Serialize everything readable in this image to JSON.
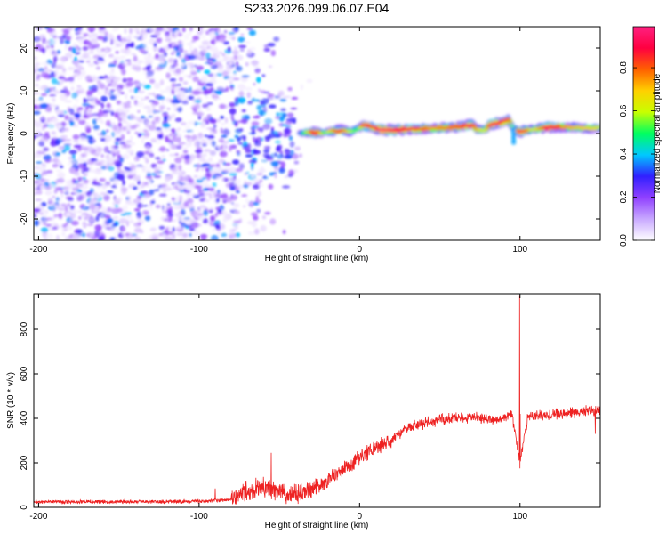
{
  "figure": {
    "title": "S233.2026.099.06.07.E04"
  },
  "chart_data": [
    {
      "type": "heatmap",
      "name": "spectrogram",
      "xlabel": "Height of straight line (km)",
      "ylabel": "Frequency (Hz)",
      "xlim": [
        -203,
        150
      ],
      "ylim": [
        -25,
        25
      ],
      "xticks": [
        -200,
        -100,
        0,
        100
      ],
      "yticks": [
        -20,
        -10,
        0,
        10,
        20
      ],
      "noise_region": {
        "x_start": -203,
        "x_end": -30,
        "fade_start": -90,
        "dense_end": -50
      },
      "signal_ridge": [
        {
          "x": -37,
          "y": 0.0,
          "a": 0.35
        },
        {
          "x": -33,
          "y": 0.3,
          "a": 0.6
        },
        {
          "x": -28,
          "y": 0.2,
          "a": 0.95
        },
        {
          "x": -22,
          "y": 0.1,
          "a": 0.5
        },
        {
          "x": -18,
          "y": 0.5,
          "a": 0.7
        },
        {
          "x": -12,
          "y": 0.8,
          "a": 0.9
        },
        {
          "x": -6,
          "y": 0.4,
          "a": 0.6
        },
        {
          "x": -1,
          "y": 1.2,
          "a": 0.5
        },
        {
          "x": 3,
          "y": 1.8,
          "a": 0.95
        },
        {
          "x": 8,
          "y": 1.5,
          "a": 0.8
        },
        {
          "x": 13,
          "y": 0.8,
          "a": 1.0
        },
        {
          "x": 20,
          "y": 0.8,
          "a": 0.95
        },
        {
          "x": 30,
          "y": 1.0,
          "a": 0.9
        },
        {
          "x": 45,
          "y": 1.2,
          "a": 0.75
        },
        {
          "x": 60,
          "y": 1.5,
          "a": 0.8
        },
        {
          "x": 70,
          "y": 2.0,
          "a": 0.95
        },
        {
          "x": 73,
          "y": 1.0,
          "a": 0.7
        },
        {
          "x": 78,
          "y": 0.8,
          "a": 0.6
        },
        {
          "x": 82,
          "y": 2.3,
          "a": 0.95
        },
        {
          "x": 88,
          "y": 2.5,
          "a": 0.9
        },
        {
          "x": 93,
          "y": 3.2,
          "a": 0.85
        },
        {
          "x": 96,
          "y": 1.0,
          "a": 0.45
        },
        {
          "x": 100,
          "y": 0.5,
          "a": 1.0
        },
        {
          "x": 108,
          "y": 1.0,
          "a": 0.6
        },
        {
          "x": 118,
          "y": 1.5,
          "a": 0.95
        },
        {
          "x": 128,
          "y": 1.5,
          "a": 0.75
        },
        {
          "x": 140,
          "y": 1.3,
          "a": 0.7
        },
        {
          "x": 150,
          "y": 1.2,
          "a": 0.65
        }
      ],
      "colorbar": {
        "label": "Normalized spectral amplitude",
        "range": [
          0.0,
          0.99
        ],
        "ticks": [
          0.0,
          0.2,
          0.4,
          0.6,
          0.8
        ],
        "tick_labels": [
          "0.0",
          "0.2",
          "0.4",
          "0.6",
          "0.8"
        ],
        "colors": [
          "#ffffff",
          "#c8a8ff",
          "#9040ff",
          "#3020ff",
          "#00c8ff",
          "#00ff60",
          "#c8ff00",
          "#ffd000",
          "#ff6000",
          "#ff0040",
          "#ff2080"
        ]
      }
    },
    {
      "type": "line",
      "name": "snr",
      "xlabel": "Height of straight line (km)",
      "ylabel": "SNR (10 * v/v)",
      "xlim": [
        -203,
        150
      ],
      "ylim": [
        0,
        960
      ],
      "xticks": [
        -200,
        -100,
        0,
        100
      ],
      "yticks": [
        0,
        200,
        400,
        600,
        800
      ],
      "color": "#ee2222",
      "trend": [
        {
          "x": -203,
          "y": 25
        },
        {
          "x": -120,
          "y": 25
        },
        {
          "x": -95,
          "y": 28
        },
        {
          "x": -80,
          "y": 35
        },
        {
          "x": -72,
          "y": 70
        },
        {
          "x": -60,
          "y": 90
        },
        {
          "x": -45,
          "y": 60
        },
        {
          "x": -35,
          "y": 60
        },
        {
          "x": -20,
          "y": 120
        },
        {
          "x": -5,
          "y": 200
        },
        {
          "x": 10,
          "y": 270
        },
        {
          "x": 20,
          "y": 300
        },
        {
          "x": 30,
          "y": 360
        },
        {
          "x": 50,
          "y": 395
        },
        {
          "x": 70,
          "y": 405
        },
        {
          "x": 85,
          "y": 390
        },
        {
          "x": 95,
          "y": 420
        },
        {
          "x": 100,
          "y": 200
        },
        {
          "x": 105,
          "y": 410
        },
        {
          "x": 120,
          "y": 420
        },
        {
          "x": 150,
          "y": 435
        }
      ],
      "spikes": [
        {
          "x": 99.7,
          "y": 950
        },
        {
          "x": 99.9,
          "y": 175
        },
        {
          "x": 100.2,
          "y": 420
        },
        {
          "x": -55,
          "y": 245
        },
        {
          "x": -90,
          "y": 85
        },
        {
          "x": 147,
          "y": 330
        }
      ]
    }
  ]
}
